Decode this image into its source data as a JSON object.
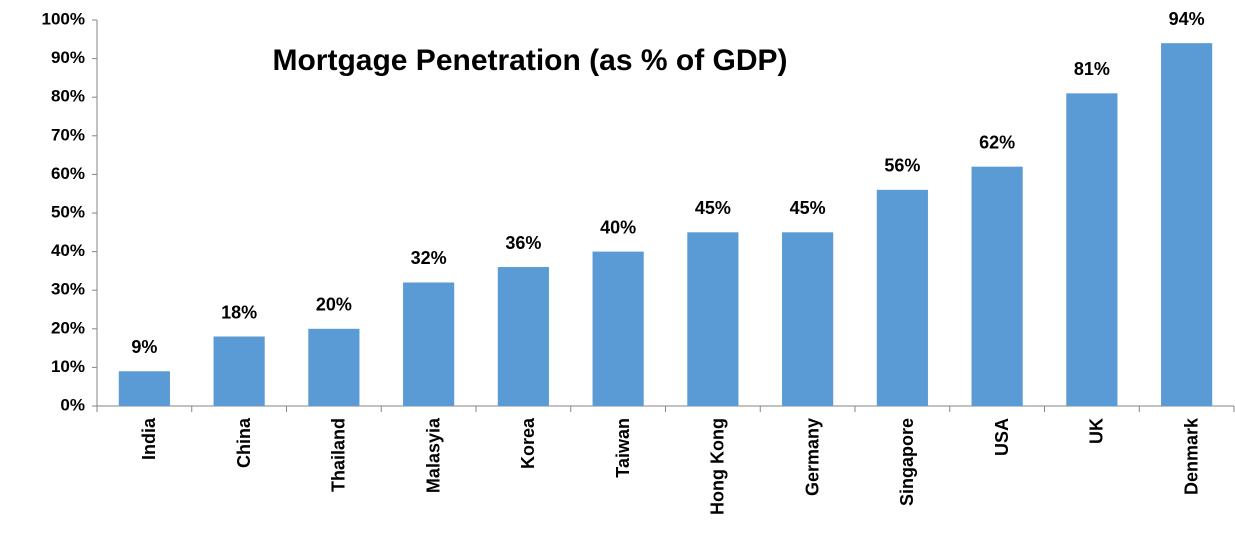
{
  "chart_data": {
    "type": "bar",
    "title": "Mortgage Penetration (as % of GDP)",
    "categories": [
      "India",
      "China",
      "Thailand",
      "Malasyia",
      "Korea",
      "Taiwan",
      "Hong Kong",
      "Germany",
      "Singapore",
      "USA",
      "UK",
      "Denmark"
    ],
    "values": [
      9,
      18,
      20,
      32,
      36,
      40,
      45,
      45,
      56,
      62,
      81,
      94
    ],
    "value_labels": [
      "9%",
      "18%",
      "20%",
      "32%",
      "36%",
      "40%",
      "45%",
      "45%",
      "56%",
      "62%",
      "81%",
      "94%"
    ],
    "color": "#5b9bd5",
    "ylim": [
      0,
      100
    ],
    "yticks": [
      {
        "value": 0,
        "label": "0%"
      },
      {
        "value": 10,
        "label": "10%"
      },
      {
        "value": 20,
        "label": "20%"
      },
      {
        "value": 30,
        "label": "30%"
      },
      {
        "value": 40,
        "label": "40%"
      },
      {
        "value": 50,
        "label": "50%"
      },
      {
        "value": 60,
        "label": "60%"
      },
      {
        "value": 70,
        "label": "70%"
      },
      {
        "value": 80,
        "label": "80%"
      },
      {
        "value": 90,
        "label": "90%"
      },
      {
        "value": 100,
        "label": "100%"
      }
    ],
    "grid": false
  }
}
